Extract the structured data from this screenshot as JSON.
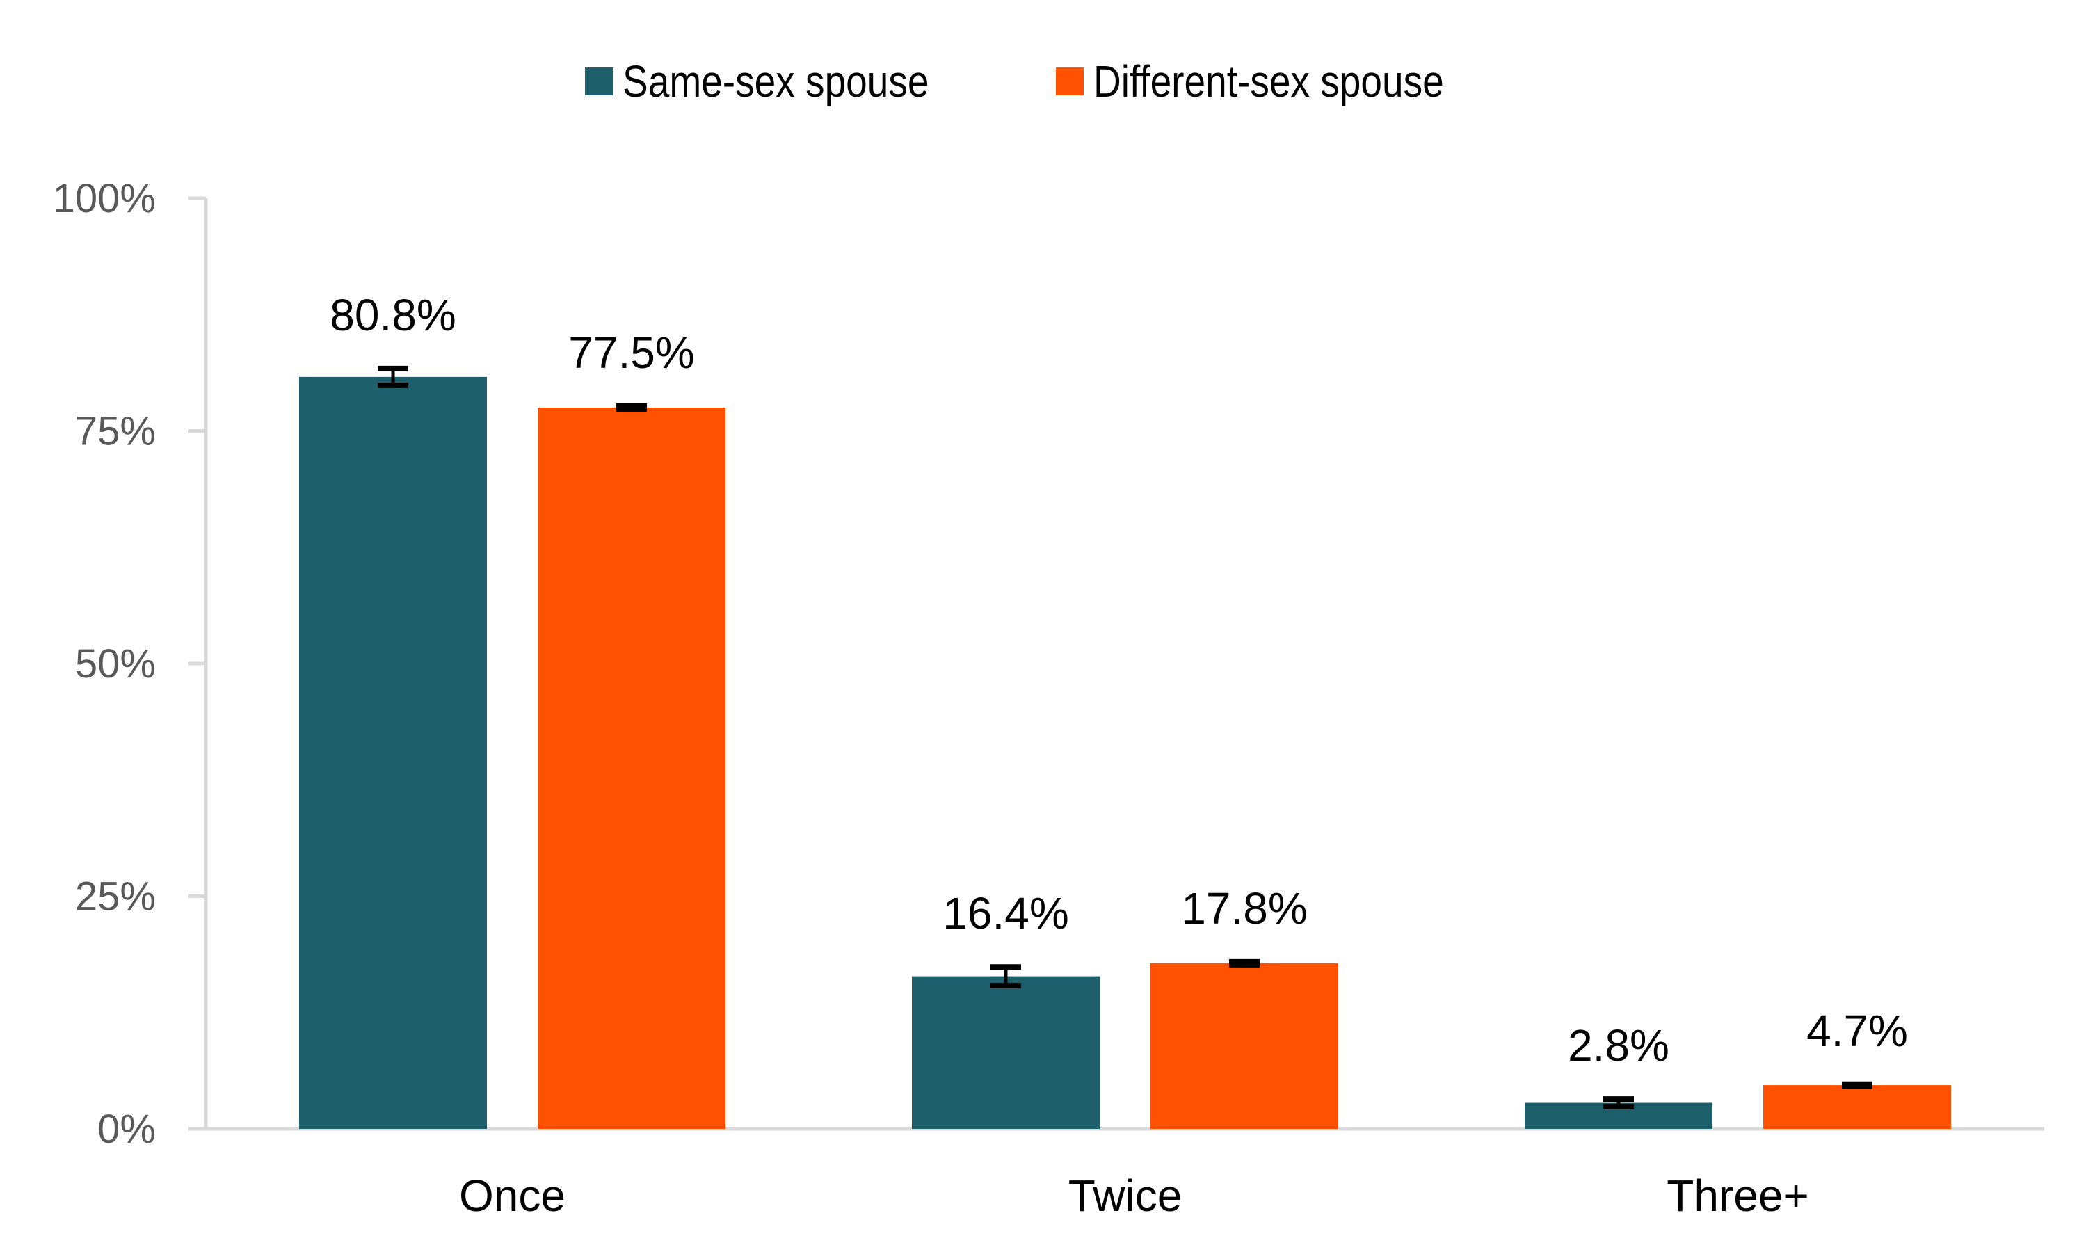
{
  "chart_data": {
    "type": "bar",
    "title": "",
    "xlabel": "",
    "ylabel": "",
    "categories": [
      "Once",
      "Twice",
      "Three+"
    ],
    "series": [
      {
        "name": "Same-sex spouse",
        "color": "#1D5F6B",
        "values": [
          80.8,
          16.4,
          2.8
        ],
        "labels": [
          "80.8%",
          "16.4%",
          "2.8%"
        ],
        "error": [
          0.9,
          1.0,
          0.4
        ]
      },
      {
        "name": "Different-sex spouse",
        "color": "#FF5100",
        "values": [
          77.5,
          17.8,
          4.7
        ],
        "labels": [
          "77.5%",
          "17.8%",
          "4.7%"
        ],
        "error": [
          0.15,
          0.15,
          0.1
        ]
      }
    ],
    "ylim": [
      0,
      100
    ],
    "yticks": [
      0,
      25,
      50,
      75,
      100
    ],
    "ytick_labels": [
      "0%",
      "25%",
      "50%",
      "75%",
      "100%"
    ],
    "grid": false,
    "legend_position": "top-center",
    "axis_color": "#D9D9D9"
  }
}
